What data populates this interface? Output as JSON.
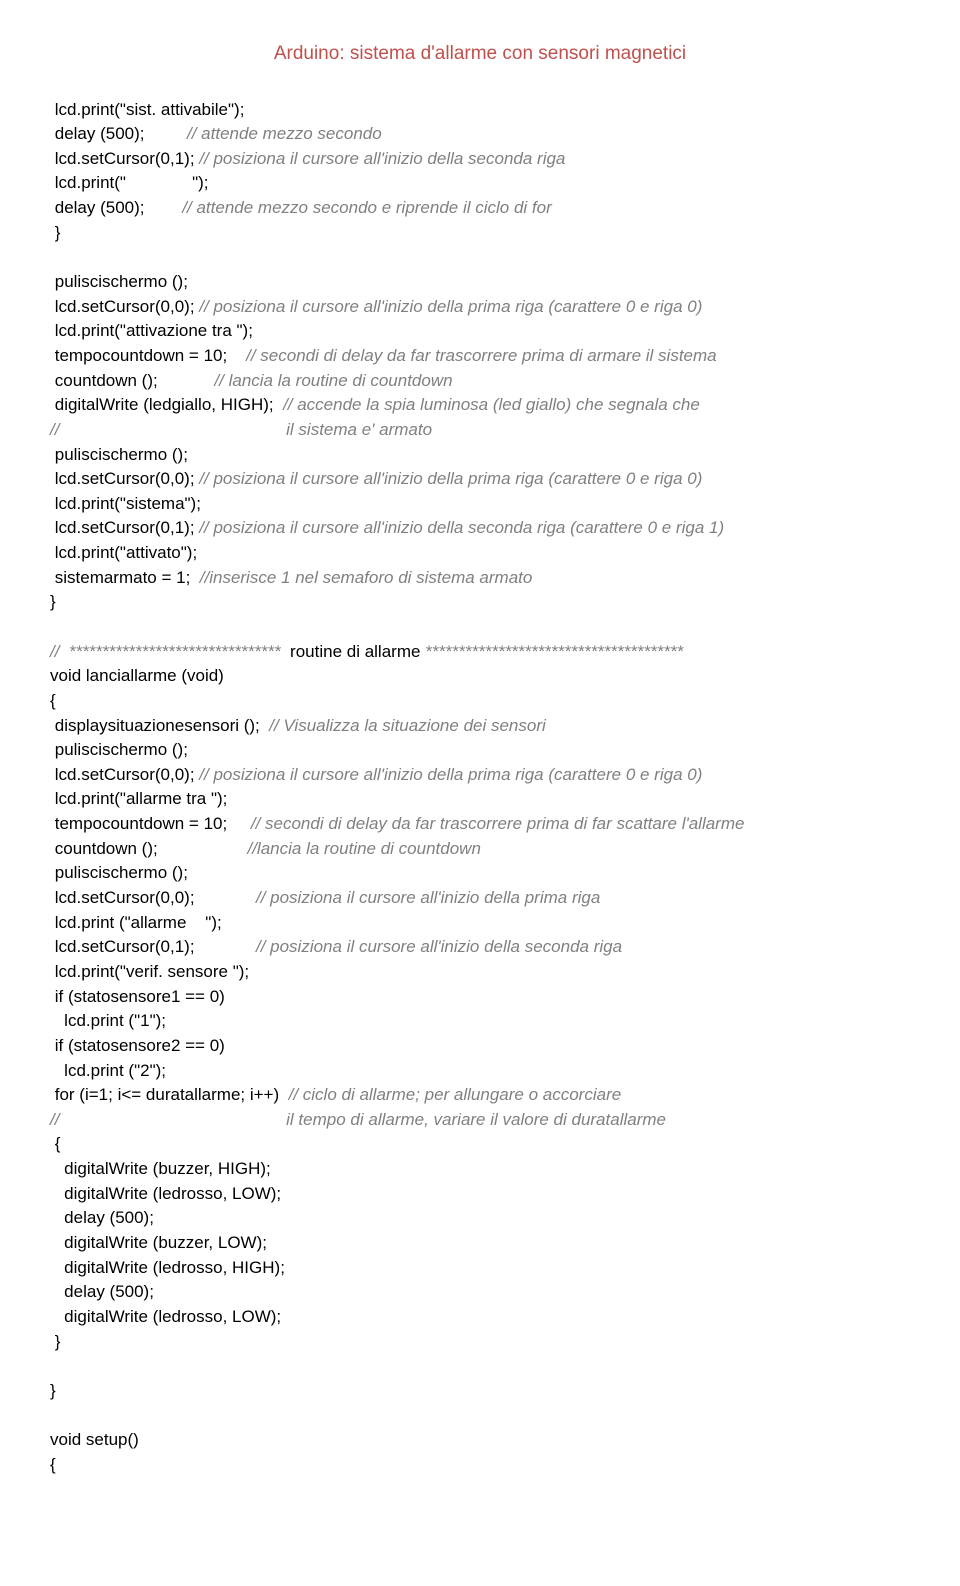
{
  "header": "Arduino: sistema d'allarme con sensori magnetici",
  "lines": [
    {
      "segments": [
        {
          "t": " lcd.print(\"sist. attivabile\");",
          "c": "black"
        }
      ]
    },
    {
      "segments": [
        {
          "t": " delay (500);         ",
          "c": "black"
        },
        {
          "t": "// attende mezzo secondo",
          "c": "comment"
        }
      ]
    },
    {
      "segments": [
        {
          "t": " lcd.setCursor(0,1); ",
          "c": "black"
        },
        {
          "t": "// posiziona il cursore all'inizio della seconda riga",
          "c": "comment"
        }
      ]
    },
    {
      "segments": [
        {
          "t": " lcd.print(\"              \");",
          "c": "black"
        }
      ]
    },
    {
      "segments": [
        {
          "t": " delay (500);        ",
          "c": "black"
        },
        {
          "t": "// attende mezzo secondo e riprende il ciclo di for",
          "c": "comment"
        }
      ]
    },
    {
      "segments": [
        {
          "t": " }",
          "c": "black"
        }
      ]
    },
    {
      "segments": [
        {
          "t": " ",
          "c": "black"
        }
      ]
    },
    {
      "segments": [
        {
          "t": " puliscischermo ();",
          "c": "black"
        }
      ]
    },
    {
      "segments": [
        {
          "t": " lcd.setCursor(0,0); ",
          "c": "black"
        },
        {
          "t": "// posiziona il cursore all'inizio della prima riga (carattere 0 e riga 0)",
          "c": "comment"
        }
      ]
    },
    {
      "segments": [
        {
          "t": " lcd.print(\"attivazione tra \");",
          "c": "black"
        }
      ]
    },
    {
      "segments": [
        {
          "t": " tempocountdown = 10;    ",
          "c": "black"
        },
        {
          "t": "// secondi di delay da far trascorrere prima di armare il sistema",
          "c": "comment"
        }
      ]
    },
    {
      "segments": [
        {
          "t": " countdown ();            ",
          "c": "black"
        },
        {
          "t": "// lancia la routine di countdown",
          "c": "comment"
        }
      ]
    },
    {
      "segments": [
        {
          "t": " digitalWrite (ledgiallo, HIGH);  ",
          "c": "black"
        },
        {
          "t": "// accende la spia luminosa (led giallo) che segnala che",
          "c": "comment"
        }
      ]
    },
    {
      "segments": [
        {
          "t": "//                                                il sistema e' armato",
          "c": "comment"
        }
      ]
    },
    {
      "segments": [
        {
          "t": " puliscischermo ();",
          "c": "black"
        }
      ]
    },
    {
      "segments": [
        {
          "t": " lcd.setCursor(0,0); ",
          "c": "black"
        },
        {
          "t": "// posiziona il cursore all'inizio della prima riga (carattere 0 e riga 0)",
          "c": "comment"
        }
      ]
    },
    {
      "segments": [
        {
          "t": " lcd.print(\"sistema\");",
          "c": "black"
        }
      ]
    },
    {
      "segments": [
        {
          "t": " lcd.setCursor(0,1); ",
          "c": "black"
        },
        {
          "t": "// posiziona il cursore all'inizio della seconda riga (carattere 0 e riga 1)",
          "c": "comment"
        }
      ]
    },
    {
      "segments": [
        {
          "t": " lcd.print(\"attivato\");",
          "c": "black"
        }
      ]
    },
    {
      "segments": [
        {
          "t": " sistemarmato = 1;  ",
          "c": "black"
        },
        {
          "t": "//inserisce 1 nel semaforo di sistema armato",
          "c": "comment"
        }
      ]
    },
    {
      "segments": [
        {
          "t": "}",
          "c": "black"
        }
      ]
    },
    {
      "segments": [
        {
          "t": " ",
          "c": "black"
        }
      ]
    },
    {
      "segments": [
        {
          "t": "//  ********************************  ",
          "c": "comment"
        },
        {
          "t": "routine di allarme",
          "c": "black"
        },
        {
          "t": " ***************************************",
          "c": "comment"
        }
      ]
    },
    {
      "segments": [
        {
          "t": "void lanciallarme (void)",
          "c": "black"
        }
      ]
    },
    {
      "segments": [
        {
          "t": "{",
          "c": "black"
        }
      ]
    },
    {
      "segments": [
        {
          "t": " displaysituazionesensori ();  ",
          "c": "black"
        },
        {
          "t": "// Visualizza la situazione dei sensori",
          "c": "comment"
        }
      ]
    },
    {
      "segments": [
        {
          "t": " puliscischermo ();",
          "c": "black"
        }
      ]
    },
    {
      "segments": [
        {
          "t": " lcd.setCursor(0,0); ",
          "c": "black"
        },
        {
          "t": "// posiziona il cursore all'inizio della prima riga (carattere 0 e riga 0)",
          "c": "comment"
        }
      ]
    },
    {
      "segments": [
        {
          "t": " lcd.print(\"allarme tra \");",
          "c": "black"
        }
      ]
    },
    {
      "segments": [
        {
          "t": " tempocountdown = 10;     ",
          "c": "black"
        },
        {
          "t": "// secondi di delay da far trascorrere prima di far scattare l'allarme",
          "c": "comment"
        }
      ]
    },
    {
      "segments": [
        {
          "t": " countdown ();                   ",
          "c": "black"
        },
        {
          "t": "//lancia la routine di countdown",
          "c": "comment"
        }
      ]
    },
    {
      "segments": [
        {
          "t": " puliscischermo ();",
          "c": "black"
        }
      ]
    },
    {
      "segments": [
        {
          "t": " lcd.setCursor(0,0);             ",
          "c": "black"
        },
        {
          "t": "// posiziona il cursore all'inizio della prima riga",
          "c": "comment"
        }
      ]
    },
    {
      "segments": [
        {
          "t": " lcd.print (\"allarme    \");",
          "c": "black"
        }
      ]
    },
    {
      "segments": [
        {
          "t": " lcd.setCursor(0,1);             ",
          "c": "black"
        },
        {
          "t": "// posiziona il cursore all'inizio della seconda riga",
          "c": "comment"
        }
      ]
    },
    {
      "segments": [
        {
          "t": " lcd.print(\"verif. sensore \");",
          "c": "black"
        }
      ]
    },
    {
      "segments": [
        {
          "t": " if (statosensore1 == 0)",
          "c": "black"
        }
      ]
    },
    {
      "segments": [
        {
          "t": "   lcd.print (\"1\");",
          "c": "black"
        }
      ]
    },
    {
      "segments": [
        {
          "t": " if (statosensore2 == 0)",
          "c": "black"
        }
      ]
    },
    {
      "segments": [
        {
          "t": "   lcd.print (\"2\");",
          "c": "black"
        }
      ]
    },
    {
      "segments": [
        {
          "t": " for (i=1; i<= duratallarme; i++)  ",
          "c": "black"
        },
        {
          "t": "// ciclo di allarme; per allungare o accorciare",
          "c": "comment"
        }
      ]
    },
    {
      "segments": [
        {
          "t": "//                                                il tempo di allarme, variare il valore di duratallarme",
          "c": "comment"
        }
      ]
    },
    {
      "segments": [
        {
          "t": " {",
          "c": "black"
        }
      ]
    },
    {
      "segments": [
        {
          "t": "   digitalWrite (buzzer, HIGH);",
          "c": "black"
        }
      ]
    },
    {
      "segments": [
        {
          "t": "   digitalWrite (ledrosso, LOW);",
          "c": "black"
        }
      ]
    },
    {
      "segments": [
        {
          "t": "   delay (500);",
          "c": "black"
        }
      ]
    },
    {
      "segments": [
        {
          "t": "   digitalWrite (buzzer, LOW);",
          "c": "black"
        }
      ]
    },
    {
      "segments": [
        {
          "t": "   digitalWrite (ledrosso, HIGH);",
          "c": "black"
        }
      ]
    },
    {
      "segments": [
        {
          "t": "   delay (500);",
          "c": "black"
        }
      ]
    },
    {
      "segments": [
        {
          "t": "   digitalWrite (ledrosso, LOW);",
          "c": "black"
        }
      ]
    },
    {
      "segments": [
        {
          "t": " }",
          "c": "black"
        }
      ]
    },
    {
      "segments": [
        {
          "t": " ",
          "c": "black"
        }
      ]
    },
    {
      "segments": [
        {
          "t": "}",
          "c": "black"
        }
      ]
    },
    {
      "segments": [
        {
          "t": " ",
          "c": "black"
        }
      ]
    },
    {
      "segments": [
        {
          "t": "void setup()",
          "c": "black"
        }
      ]
    },
    {
      "segments": [
        {
          "t": "{",
          "c": "black"
        }
      ]
    }
  ]
}
